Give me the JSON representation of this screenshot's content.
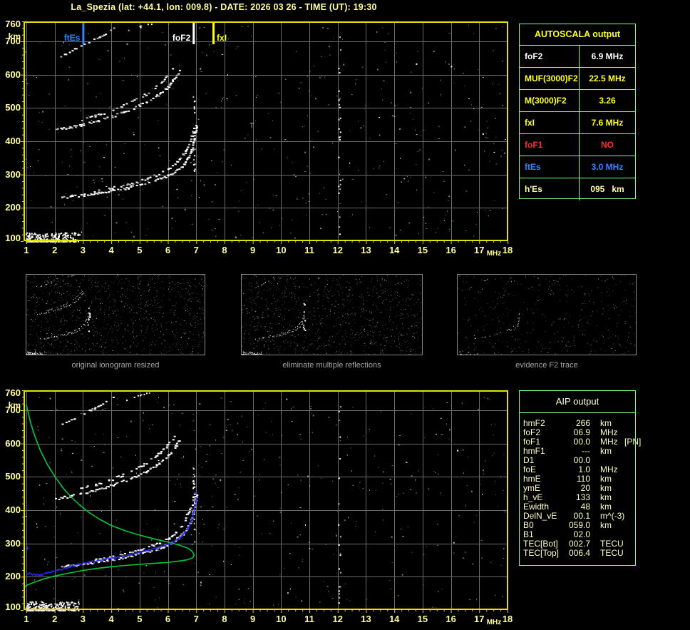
{
  "title": "La_Spezia (lat: +44.1, lon: 009.8) - DATE: 2026 03 26 - TIME (UT): 19:30",
  "colors": {
    "background": "#000000",
    "axis_text": "#ffff9e",
    "plot_border": "#e3e300",
    "grid": "#6b6b6b",
    "table_border": "#80ff80",
    "table_yellow": "#ffff2e",
    "table_white": "#ffffff",
    "table_red": "#ff2e2e",
    "table_blue": "#2e86ff",
    "table_pale": "#ffff9e",
    "aip_text": "#ffffc4",
    "profile_green": "#00c837",
    "fitted_blue": "#2b2bf0",
    "caption_gray": "#a6a6a6"
  },
  "autoscala_table": {
    "header": "AUTOSCALA output",
    "rows": [
      {
        "label": "foF2",
        "value": "6.9 MHz",
        "color": "#ffffff"
      },
      {
        "label": "MUF(3000)F2",
        "value": "22.5 MHz",
        "color": "#ffff2e"
      },
      {
        "label": "M(3000)F2",
        "value": "3.26",
        "color": "#ffff2e"
      },
      {
        "label": "fxI",
        "value": "7.6 MHz",
        "color": "#ffff2e"
      },
      {
        "label": "foF1",
        "value": "NO",
        "color": "#ff2e2e"
      },
      {
        "label": "ftEs",
        "value": "3.0 MHz",
        "color": "#2e86ff"
      },
      {
        "label": "h'Es",
        "value": "095   km",
        "color": "#ffff9e"
      }
    ]
  },
  "aip_table": {
    "header": "AIP output",
    "rows": [
      {
        "label": "hmF2",
        "value": "266",
        "unit": "km",
        "note": ""
      },
      {
        "label": "foF2",
        "value": "06.9",
        "unit": "MHz",
        "note": ""
      },
      {
        "label": "foF1",
        "value": "00.0",
        "unit": "MHz",
        "note": "[PN]"
      },
      {
        "label": "hmF1",
        "value": "---",
        "unit": "km",
        "note": ""
      },
      {
        "label": "D1",
        "value": "00.0",
        "unit": "",
        "note": ""
      },
      {
        "label": "foE",
        "value": "1.0",
        "unit": "MHz",
        "note": ""
      },
      {
        "label": "hmE",
        "value": "110",
        "unit": "km",
        "note": ""
      },
      {
        "label": "ymE",
        "value": "20",
        "unit": "km",
        "note": ""
      },
      {
        "label": "h_vE",
        "value": "133",
        "unit": "km",
        "note": ""
      },
      {
        "label": "Ewidth",
        "value": "48",
        "unit": "km",
        "note": ""
      },
      {
        "label": "DelN_vE",
        "value": "00.1",
        "unit": "m^(-3)",
        "note": ""
      },
      {
        "label": "B0",
        "value": "059.0",
        "unit": "km",
        "note": ""
      },
      {
        "label": "B1",
        "value": "02.0",
        "unit": "",
        "note": ""
      },
      {
        "label": "TEC[Bot]",
        "value": "002.7",
        "unit": "TECU",
        "note": ""
      },
      {
        "label": "TEC[Top]",
        "value": "006.4",
        "unit": "TECU",
        "note": ""
      }
    ]
  },
  "thumbnails": [
    {
      "caption": "original ionogram resized"
    },
    {
      "caption": "eliminate multiple reflections"
    },
    {
      "caption": "evidence F2 trace"
    }
  ],
  "chart_data": [
    {
      "type": "scatter",
      "name": "autoscaled ionogram",
      "xlabel": "MHz",
      "ylabel": "km",
      "xlim": [
        1,
        18
      ],
      "ylim": [
        100,
        760
      ],
      "x_ticks": [
        1,
        2,
        3,
        4,
        5,
        6,
        7,
        8,
        9,
        10,
        11,
        12,
        13,
        14,
        15,
        16,
        17,
        18
      ],
      "y_ticks": [
        760,
        700,
        600,
        500,
        400,
        300,
        200,
        100
      ],
      "grid": true,
      "markers": [
        {
          "label": "ftEs",
          "freq_mhz": 3.0,
          "color": "#2e86ff"
        },
        {
          "label": "foF2",
          "freq_mhz": 6.9,
          "color": "#ffffff"
        },
        {
          "label": "fxI",
          "freq_mhz": 7.6,
          "color": "#ffff00"
        }
      ],
      "traces": {
        "es_layer_blob": {
          "f": [
            1.0,
            2.85
          ],
          "h": [
            100,
            127
          ]
        },
        "f_trace": [
          [
            2.25,
            233
          ],
          [
            2.6,
            236
          ],
          [
            3.0,
            240
          ],
          [
            3.5,
            246
          ],
          [
            4.0,
            253
          ],
          [
            4.5,
            261
          ],
          [
            5.0,
            271
          ],
          [
            5.4,
            280
          ],
          [
            5.8,
            292
          ],
          [
            6.1,
            304
          ],
          [
            6.35,
            318
          ],
          [
            6.55,
            334
          ],
          [
            6.7,
            352
          ],
          [
            6.8,
            372
          ],
          [
            6.88,
            398
          ],
          [
            6.94,
            425
          ],
          [
            6.98,
            448
          ]
        ],
        "f_trace_upper": [
          [
            3.4,
            252
          ],
          [
            3.9,
            260
          ],
          [
            4.4,
            269
          ],
          [
            4.9,
            280
          ],
          [
            5.3,
            291
          ],
          [
            5.7,
            304
          ],
          [
            6.0,
            318
          ],
          [
            6.25,
            334
          ],
          [
            6.45,
            352
          ],
          [
            6.6,
            372
          ],
          [
            6.72,
            394
          ],
          [
            6.82,
            420
          ],
          [
            6.9,
            450
          ]
        ],
        "f_asymptote": {
          "f": 6.9,
          "h": [
            295,
            540
          ]
        },
        "f_trace_2hop": [
          [
            2.0,
            436
          ],
          [
            2.5,
            443
          ],
          [
            3.0,
            452
          ],
          [
            3.5,
            463
          ],
          [
            4.0,
            476
          ],
          [
            4.4,
            488
          ],
          [
            4.8,
            502
          ],
          [
            5.2,
            518
          ],
          [
            5.6,
            538
          ],
          [
            5.9,
            558
          ],
          [
            6.1,
            576
          ],
          [
            6.25,
            594
          ],
          [
            6.38,
            612
          ]
        ],
        "f_trace_2hop_upper": [
          [
            2.9,
            466
          ],
          [
            3.4,
            477
          ],
          [
            3.9,
            491
          ],
          [
            4.35,
            506
          ],
          [
            4.75,
            522
          ],
          [
            5.15,
            540
          ],
          [
            5.5,
            560
          ],
          [
            5.75,
            578
          ],
          [
            5.95,
            596
          ],
          [
            6.1,
            612
          ],
          [
            6.2,
            626
          ]
        ],
        "es_multiple": [
          [
            2.2,
            658
          ],
          [
            2.7,
            678
          ],
          [
            3.2,
            700
          ],
          [
            3.7,
            722
          ],
          [
            4.05,
            742
          ]
        ],
        "es_multiple_2": [
          [
            4.55,
            734
          ],
          [
            5.0,
            745
          ],
          [
            5.45,
            757
          ]
        ]
      },
      "rfi_column_mhz": 12.05
    },
    {
      "type": "scatter",
      "name": "AIP profile ionogram",
      "xlabel": "MHz",
      "ylabel": "km",
      "xlim": [
        1,
        18
      ],
      "ylim": [
        100,
        760
      ],
      "x_ticks": [
        1,
        2,
        3,
        4,
        5,
        6,
        7,
        8,
        9,
        10,
        11,
        12,
        13,
        14,
        15,
        16,
        17,
        18
      ],
      "y_ticks": [
        760,
        700,
        600,
        500,
        400,
        300,
        200,
        100
      ],
      "grid": true,
      "echo_traces": "same as panel 0",
      "profile_green": {
        "color": "#00c837",
        "points": [
          [
            1.0,
            716
          ],
          [
            1.15,
            662
          ],
          [
            1.3,
            622
          ],
          [
            1.5,
            578
          ],
          [
            1.75,
            536
          ],
          [
            2.0,
            502
          ],
          [
            2.3,
            466
          ],
          [
            2.6,
            438
          ],
          [
            2.9,
            414
          ],
          [
            3.2,
            394
          ],
          [
            3.6,
            372
          ],
          [
            4.0,
            354
          ],
          [
            4.5,
            338
          ],
          [
            5.0,
            325
          ],
          [
            5.5,
            314
          ],
          [
            6.0,
            304
          ],
          [
            6.4,
            295
          ],
          [
            6.7,
            286
          ],
          [
            6.85,
            277
          ],
          [
            6.93,
            266
          ],
          [
            6.88,
            257
          ],
          [
            6.7,
            251
          ],
          [
            6.4,
            247
          ],
          [
            6.0,
            243
          ],
          [
            5.5,
            240
          ],
          [
            5.0,
            237
          ],
          [
            4.5,
            234
          ],
          [
            4.0,
            230
          ],
          [
            3.5,
            225
          ],
          [
            3.0,
            219
          ],
          [
            2.5,
            211
          ],
          [
            2.0,
            202
          ],
          [
            1.6,
            193
          ],
          [
            1.2,
            181
          ],
          [
            1.0,
            174
          ],
          [
            0.93,
            168
          ]
        ]
      },
      "fitted_trace_blue": {
        "color": "#2b2bf0",
        "points": [
          [
            1.0,
            213
          ],
          [
            1.15,
            210
          ],
          [
            1.3,
            207
          ],
          [
            1.5,
            208
          ],
          [
            1.7,
            212
          ],
          [
            1.9,
            217
          ],
          [
            2.1,
            222
          ],
          [
            2.35,
            228
          ],
          [
            2.6,
            234
          ],
          [
            2.9,
            240
          ],
          [
            3.2,
            246
          ],
          [
            3.5,
            251
          ],
          [
            3.8,
            256
          ],
          [
            4.1,
            260
          ],
          [
            4.4,
            264
          ],
          [
            4.7,
            269
          ],
          [
            5.0,
            275
          ],
          [
            5.3,
            282
          ],
          [
            5.6,
            289
          ],
          [
            5.9,
            297
          ],
          [
            6.15,
            306
          ],
          [
            6.35,
            316
          ],
          [
            6.55,
            331
          ],
          [
            6.7,
            349
          ],
          [
            6.8,
            369
          ],
          [
            6.88,
            392
          ],
          [
            6.93,
            413
          ],
          [
            6.96,
            428
          ],
          [
            6.99,
            440
          ]
        ],
        "plus_marks": [
          [
            1.02,
            287
          ],
          [
            6.95,
            452
          ]
        ]
      }
    }
  ]
}
